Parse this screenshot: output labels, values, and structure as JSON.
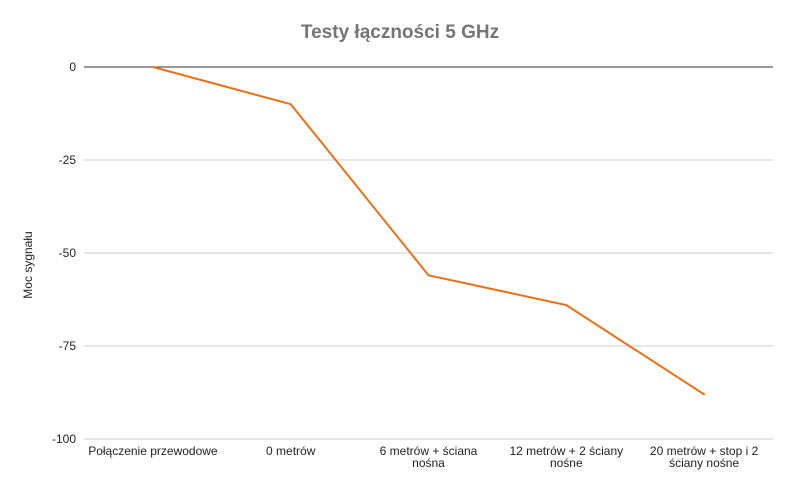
{
  "chart_data": {
    "type": "line",
    "title": "Testy łączności 5 GHz",
    "xlabel": "",
    "ylabel": "Moc sygnału",
    "categories": [
      "Połączenie przewodowe",
      "0 metrów",
      "6 metrów + ściana nośna",
      "12 metrów + 2 ściany nośne",
      "20 metrów + stop i 2 ściany nośne"
    ],
    "category_lines": [
      [
        "Połączenie przewodowe"
      ],
      [
        "0 metrów"
      ],
      [
        "6 metrów + ściana",
        "nośna"
      ],
      [
        "12 metrów + 2 ściany",
        "nośne"
      ],
      [
        "20 metrów + stop i 2",
        "ściany nośne"
      ]
    ],
    "series": [
      {
        "values": [
          0,
          -10,
          -56,
          -64,
          -88
        ],
        "color": "#e8711a"
      }
    ],
    "ylim": [
      -100,
      0
    ],
    "yticks": [
      0,
      -25,
      -50,
      -75,
      -100
    ],
    "ytick_labels": [
      "0",
      "-25",
      "-50",
      "-75",
      "-100"
    ],
    "grid": true,
    "legend": "none"
  }
}
